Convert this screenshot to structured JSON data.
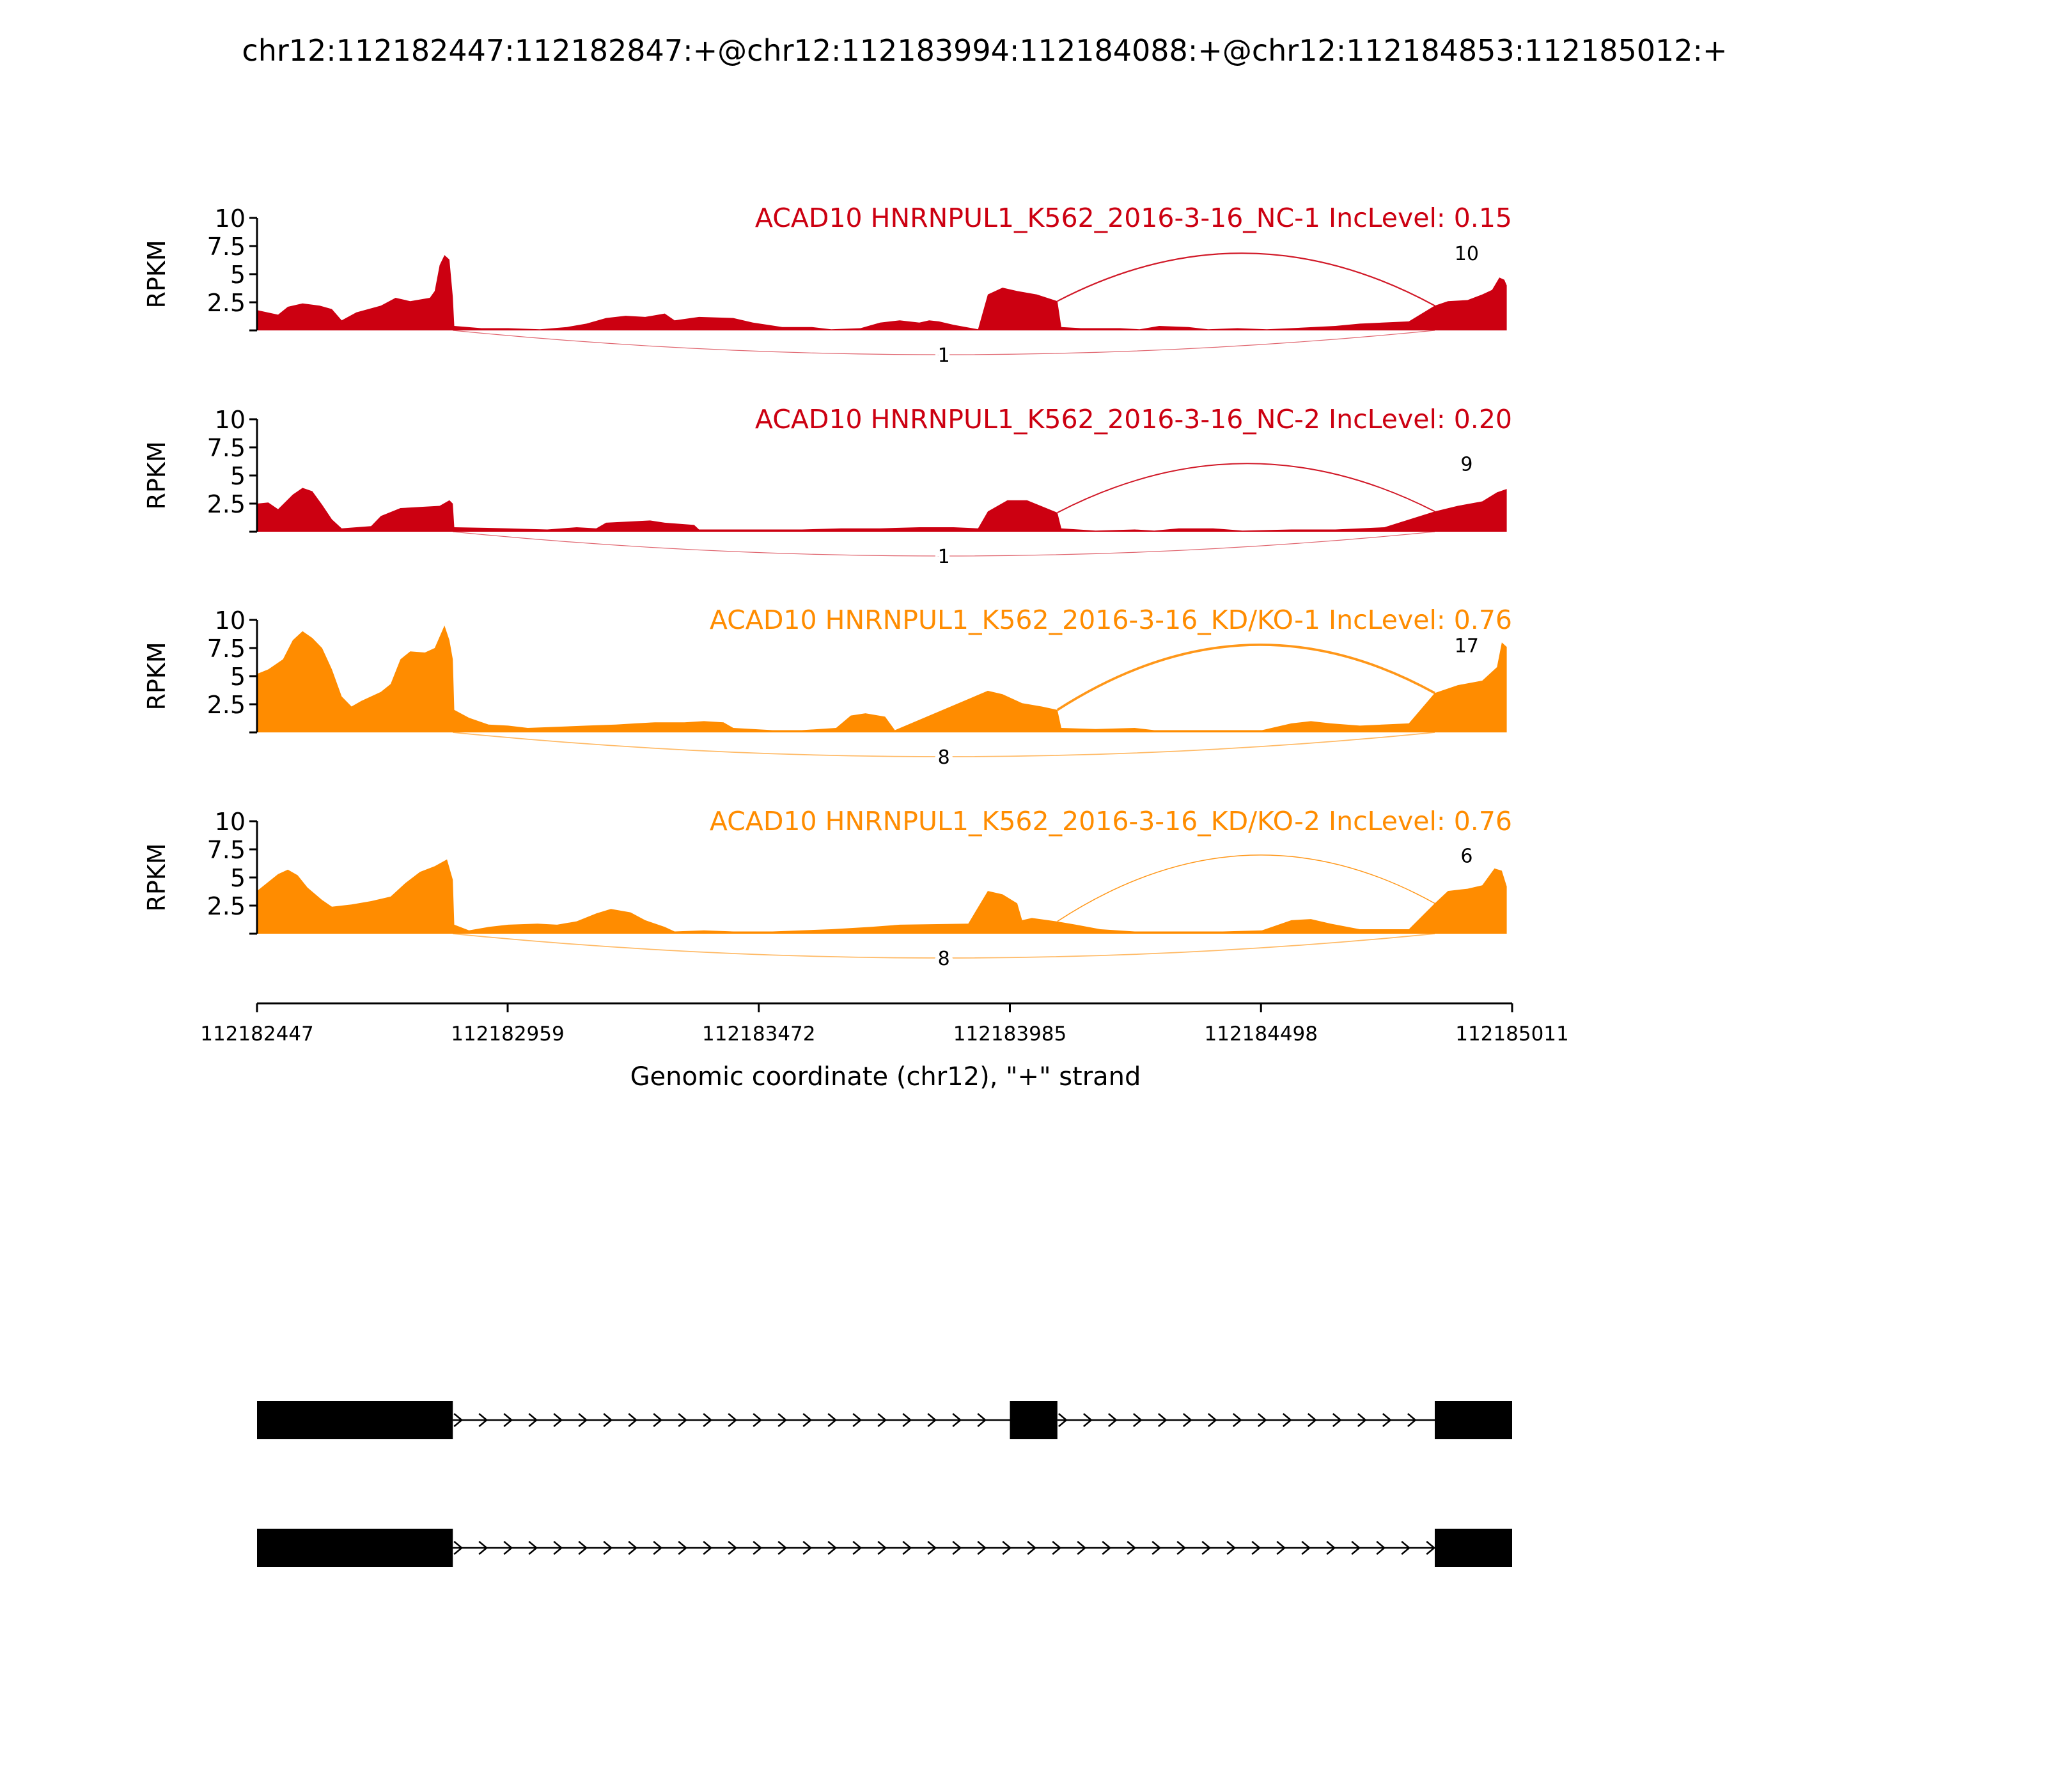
{
  "page_title": "chr12:112182447:112182847:+@chr12:112183994:112184088:+@chr12:112184853:112185012:+",
  "chart_data": {
    "type": "area",
    "title": "chr12:112182447:112182847:+@chr12:112183994:112184088:+@chr12:112184853:112185012:+",
    "xlabel": "Genomic coordinate (chr12), \"+\" strand",
    "ylabel": "RPKM",
    "xlim": [
      112182447,
      112185011
    ],
    "x_ticks": [
      112182447,
      112182959,
      112183472,
      112183985,
      112184498,
      112185011
    ],
    "x_tick_labels": [
      "112182447",
      "112182959",
      "112183472",
      "112183985",
      "112184498",
      "112185011"
    ],
    "ylim": [
      0,
      10
    ],
    "y_ticks": [
      2.5,
      5,
      7.5,
      10
    ],
    "y_tick_labels": [
      "2.5",
      "5",
      "7.5",
      "10"
    ],
    "tracks": [
      {
        "name": "ACAD10 HNRNPUL1_K562_2016-3-16_NC-1 IncLevel: 0.15",
        "color": "#cc0011",
        "junctions": [
          {
            "label": "10",
            "start": 112184082,
            "end": 112184853,
            "side": "above",
            "value": 10
          },
          {
            "label": "1",
            "start": 112182847,
            "end": 112184853,
            "side": "below",
            "value": 1
          }
        ],
        "coverage": [
          [
            112182447,
            1.8
          ],
          [
            112182490,
            1.4
          ],
          [
            112182510,
            2.1
          ],
          [
            112182540,
            2.4
          ],
          [
            112182575,
            2.2
          ],
          [
            112182600,
            1.9
          ],
          [
            112182620,
            0.9
          ],
          [
            112182650,
            1.6
          ],
          [
            112182700,
            2.2
          ],
          [
            112182730,
            2.9
          ],
          [
            112182760,
            2.6
          ],
          [
            112182800,
            2.9
          ],
          [
            112182810,
            3.5
          ],
          [
            112182820,
            5.8
          ],
          [
            112182830,
            6.7
          ],
          [
            112182840,
            6.3
          ],
          [
            112182847,
            3.0
          ],
          [
            112182850,
            0.4
          ],
          [
            112182905,
            0.2
          ],
          [
            112182960,
            0.2
          ],
          [
            112183025,
            0.1
          ],
          [
            112183080,
            0.3
          ],
          [
            112183120,
            0.6
          ],
          [
            112183160,
            1.1
          ],
          [
            112183200,
            1.3
          ],
          [
            112183240,
            1.2
          ],
          [
            112183280,
            1.5
          ],
          [
            112183300,
            0.9
          ],
          [
            112183350,
            1.2
          ],
          [
            112183420,
            1.1
          ],
          [
            112183460,
            0.7
          ],
          [
            112183520,
            0.3
          ],
          [
            112183580,
            0.3
          ],
          [
            112183620,
            0.1
          ],
          [
            112183680,
            0.2
          ],
          [
            112183720,
            0.7
          ],
          [
            112183760,
            0.9
          ],
          [
            112183800,
            0.7
          ],
          [
            112183820,
            0.9
          ],
          [
            112183840,
            0.8
          ],
          [
            112183870,
            0.5
          ],
          [
            112183920,
            0.1
          ],
          [
            112183940,
            3.2
          ],
          [
            112183970,
            3.8
          ],
          [
            112184000,
            3.5
          ],
          [
            112184040,
            3.2
          ],
          [
            112184082,
            2.6
          ],
          [
            112184090,
            0.3
          ],
          [
            112184130,
            0.2
          ],
          [
            112184210,
            0.2
          ],
          [
            112184250,
            0.1
          ],
          [
            112184290,
            0.4
          ],
          [
            112184350,
            0.3
          ],
          [
            112184390,
            0.1
          ],
          [
            112184450,
            0.2
          ],
          [
            112184510,
            0.1
          ],
          [
            112184560,
            0.2
          ],
          [
            112184650,
            0.4
          ],
          [
            112184700,
            0.6
          ],
          [
            112184800,
            0.8
          ],
          [
            112184853,
            2.2
          ],
          [
            112184880,
            2.6
          ],
          [
            112184920,
            2.7
          ],
          [
            112184950,
            3.2
          ],
          [
            112184970,
            3.6
          ],
          [
            112184985,
            4.7
          ],
          [
            112184995,
            4.5
          ],
          [
            112185000,
            4.0
          ]
        ]
      },
      {
        "name": "ACAD10 HNRNPUL1_K562_2016-3-16_NC-2 IncLevel: 0.20",
        "color": "#cc0011",
        "junctions": [
          {
            "label": "9",
            "start": 112184082,
            "end": 112184853,
            "side": "above",
            "value": 9
          },
          {
            "label": "1",
            "start": 112182847,
            "end": 112184853,
            "side": "below",
            "value": 1
          }
        ],
        "coverage": [
          [
            112182447,
            2.5
          ],
          [
            112182470,
            2.6
          ],
          [
            112182490,
            2.0
          ],
          [
            112182520,
            3.3
          ],
          [
            112182540,
            3.9
          ],
          [
            112182560,
            3.6
          ],
          [
            112182580,
            2.4
          ],
          [
            112182600,
            1.1
          ],
          [
            112182620,
            0.3
          ],
          [
            112182680,
            0.5
          ],
          [
            112182700,
            1.4
          ],
          [
            112182740,
            2.1
          ],
          [
            112182780,
            2.2
          ],
          [
            112182820,
            2.3
          ],
          [
            112182840,
            2.8
          ],
          [
            112182847,
            2.5
          ],
          [
            112182850,
            0.4
          ],
          [
            112182960,
            0.3
          ],
          [
            112183040,
            0.2
          ],
          [
            112183100,
            0.4
          ],
          [
            112183140,
            0.3
          ],
          [
            112183160,
            0.8
          ],
          [
            112183250,
            1.0
          ],
          [
            112183280,
            0.8
          ],
          [
            112183340,
            0.6
          ],
          [
            112183350,
            0.2
          ],
          [
            112183420,
            0.2
          ],
          [
            112183500,
            0.2
          ],
          [
            112183560,
            0.2
          ],
          [
            112183640,
            0.3
          ],
          [
            112183720,
            0.3
          ],
          [
            112183800,
            0.4
          ],
          [
            112183870,
            0.4
          ],
          [
            112183920,
            0.3
          ],
          [
            112183940,
            1.8
          ],
          [
            112183980,
            2.8
          ],
          [
            112184020,
            2.8
          ],
          [
            112184082,
            1.7
          ],
          [
            112184090,
            0.3
          ],
          [
            112184160,
            0.1
          ],
          [
            112184240,
            0.2
          ],
          [
            112184280,
            0.1
          ],
          [
            112184330,
            0.3
          ],
          [
            112184400,
            0.3
          ],
          [
            112184460,
            0.1
          ],
          [
            112184560,
            0.2
          ],
          [
            112184650,
            0.2
          ],
          [
            112184750,
            0.4
          ],
          [
            112184853,
            1.8
          ],
          [
            112184900,
            2.3
          ],
          [
            112184950,
            2.7
          ],
          [
            112184980,
            3.5
          ],
          [
            112185000,
            3.8
          ]
        ]
      },
      {
        "name": "ACAD10 HNRNPUL1_K562_2016-3-16_KD/KO-1 IncLevel: 0.76",
        "color": "#ff8c00",
        "junctions": [
          {
            "label": "17",
            "start": 112184082,
            "end": 112184853,
            "side": "above",
            "value": 17
          },
          {
            "label": "8",
            "start": 112182847,
            "end": 112184853,
            "side": "below",
            "value": 8
          }
        ],
        "coverage": [
          [
            112182447,
            5.2
          ],
          [
            112182470,
            5.6
          ],
          [
            112182500,
            6.5
          ],
          [
            112182520,
            8.2
          ],
          [
            112182540,
            9.0
          ],
          [
            112182560,
            8.4
          ],
          [
            112182580,
            7.5
          ],
          [
            112182600,
            5.6
          ],
          [
            112182620,
            3.2
          ],
          [
            112182640,
            2.3
          ],
          [
            112182660,
            2.8
          ],
          [
            112182700,
            3.6
          ],
          [
            112182720,
            4.3
          ],
          [
            112182740,
            6.5
          ],
          [
            112182760,
            7.2
          ],
          [
            112182790,
            7.1
          ],
          [
            112182810,
            7.5
          ],
          [
            112182830,
            9.5
          ],
          [
            112182840,
            8.2
          ],
          [
            112182847,
            6.5
          ],
          [
            112182850,
            2.0
          ],
          [
            112182880,
            1.3
          ],
          [
            112182920,
            0.7
          ],
          [
            112182960,
            0.6
          ],
          [
            112183000,
            0.4
          ],
          [
            112183060,
            0.5
          ],
          [
            112183120,
            0.6
          ],
          [
            112183180,
            0.7
          ],
          [
            112183220,
            0.8
          ],
          [
            112183260,
            0.9
          ],
          [
            112183320,
            0.9
          ],
          [
            112183360,
            1.0
          ],
          [
            112183400,
            0.9
          ],
          [
            112183420,
            0.4
          ],
          [
            112183500,
            0.2
          ],
          [
            112183560,
            0.2
          ],
          [
            112183630,
            0.4
          ],
          [
            112183660,
            1.5
          ],
          [
            112183690,
            1.7
          ],
          [
            112183730,
            1.4
          ],
          [
            112183750,
            0.2
          ],
          [
            112183940,
            3.7
          ],
          [
            112183970,
            3.4
          ],
          [
            112184010,
            2.6
          ],
          [
            112184050,
            2.3
          ],
          [
            112184082,
            2.0
          ],
          [
            112184090,
            0.4
          ],
          [
            112184160,
            0.3
          ],
          [
            112184240,
            0.4
          ],
          [
            112184280,
            0.2
          ],
          [
            112184330,
            0.2
          ],
          [
            112184410,
            0.2
          ],
          [
            112184500,
            0.2
          ],
          [
            112184560,
            0.8
          ],
          [
            112184600,
            1.0
          ],
          [
            112184640,
            0.8
          ],
          [
            112184700,
            0.6
          ],
          [
            112184800,
            0.8
          ],
          [
            112184853,
            3.5
          ],
          [
            112184900,
            4.2
          ],
          [
            112184950,
            4.6
          ],
          [
            112184980,
            5.8
          ],
          [
            112184990,
            8.0
          ],
          [
            112185000,
            7.6
          ]
        ]
      },
      {
        "name": "ACAD10 HNRNPUL1_K562_2016-3-16_KD/KO-2 IncLevel: 0.76",
        "color": "#ff8c00",
        "junctions": [
          {
            "label": "6",
            "start": 112184082,
            "end": 112184853,
            "side": "above",
            "value": 6
          },
          {
            "label": "8",
            "start": 112182847,
            "end": 112184853,
            "side": "below",
            "value": 8
          }
        ],
        "coverage": [
          [
            112182447,
            3.8
          ],
          [
            112182470,
            4.6
          ],
          [
            112182490,
            5.3
          ],
          [
            112182510,
            5.7
          ],
          [
            112182530,
            5.2
          ],
          [
            112182550,
            4.1
          ],
          [
            112182580,
            3.0
          ],
          [
            112182600,
            2.4
          ],
          [
            112182640,
            2.6
          ],
          [
            112182680,
            2.9
          ],
          [
            112182720,
            3.3
          ],
          [
            112182750,
            4.5
          ],
          [
            112182780,
            5.5
          ],
          [
            112182810,
            6.0
          ],
          [
            112182835,
            6.6
          ],
          [
            112182847,
            4.8
          ],
          [
            112182850,
            0.8
          ],
          [
            112182880,
            0.3
          ],
          [
            112182920,
            0.6
          ],
          [
            112182960,
            0.8
          ],
          [
            112183020,
            0.9
          ],
          [
            112183060,
            0.8
          ],
          [
            112183100,
            1.1
          ],
          [
            112183140,
            1.8
          ],
          [
            112183170,
            2.2
          ],
          [
            112183210,
            1.9
          ],
          [
            112183240,
            1.2
          ],
          [
            112183280,
            0.6
          ],
          [
            112183300,
            0.2
          ],
          [
            112183360,
            0.3
          ],
          [
            112183420,
            0.2
          ],
          [
            112183500,
            0.2
          ],
          [
            112183560,
            0.3
          ],
          [
            112183620,
            0.4
          ],
          [
            112183700,
            0.6
          ],
          [
            112183760,
            0.8
          ],
          [
            112183900,
            0.9
          ],
          [
            112183940,
            3.8
          ],
          [
            112183970,
            3.5
          ],
          [
            112184000,
            2.7
          ],
          [
            112184010,
            1.2
          ],
          [
            112184030,
            1.4
          ],
          [
            112184080,
            1.1
          ],
          [
            112184120,
            0.8
          ],
          [
            112184170,
            0.4
          ],
          [
            112184240,
            0.2
          ],
          [
            112184320,
            0.2
          ],
          [
            112184420,
            0.2
          ],
          [
            112184500,
            0.3
          ],
          [
            112184560,
            1.2
          ],
          [
            112184600,
            1.3
          ],
          [
            112184640,
            0.9
          ],
          [
            112184700,
            0.4
          ],
          [
            112184800,
            0.4
          ],
          [
            112184853,
            2.7
          ],
          [
            112184880,
            3.8
          ],
          [
            112184920,
            4.0
          ],
          [
            112184950,
            4.3
          ],
          [
            112184975,
            5.8
          ],
          [
            112184990,
            5.6
          ],
          [
            112185000,
            4.2
          ]
        ]
      }
    ],
    "isoforms": [
      {
        "exons": [
          [
            112182447,
            112182847
          ],
          [
            112183985,
            112184082
          ],
          [
            112184853,
            112185011
          ]
        ]
      },
      {
        "exons": [
          [
            112182447,
            112182847
          ],
          [
            112184853,
            112185011
          ]
        ]
      }
    ]
  }
}
